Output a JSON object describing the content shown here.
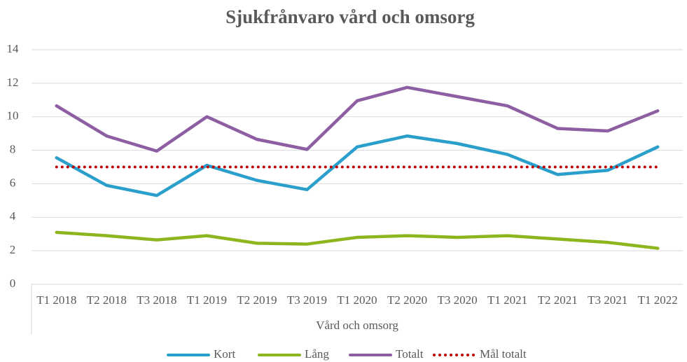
{
  "chart_data": {
    "type": "line",
    "title": "Sjukfrånvaro vård och omsorg",
    "x_label": "Vård och omsorg",
    "categories": [
      "T1 2018",
      "T2 2018",
      "T3 2018",
      "T1 2019",
      "T2 2019",
      "T3 2019",
      "T1 2020",
      "T2 2020",
      "T3 2020",
      "T1 2021",
      "T2 2021",
      "T3 2021",
      "T1 2022"
    ],
    "series": [
      {
        "name": "Kort",
        "color": "#2a9fcb",
        "dash": "solid",
        "values": [
          7.55,
          5.9,
          5.3,
          7.1,
          6.2,
          5.65,
          8.2,
          8.85,
          8.4,
          7.75,
          6.55,
          6.8,
          8.2
        ]
      },
      {
        "name": "Lång",
        "color": "#8db51e",
        "dash": "solid",
        "values": [
          3.1,
          2.9,
          2.65,
          2.9,
          2.45,
          2.4,
          2.8,
          2.9,
          2.8,
          2.9,
          2.7,
          2.5,
          2.15
        ]
      },
      {
        "name": "Totalt",
        "color": "#8e5ea2",
        "dash": "solid",
        "values": [
          10.65,
          8.85,
          7.95,
          10.0,
          8.65,
          8.05,
          10.95,
          11.75,
          11.2,
          10.65,
          9.3,
          9.15,
          10.35
        ]
      },
      {
        "name": "Mål totalt",
        "color": "#c00000",
        "dash": "dotted",
        "values": [
          7,
          7,
          7,
          7,
          7,
          7,
          7,
          7,
          7,
          7,
          7,
          7,
          7
        ]
      }
    ],
    "ylim": [
      0,
      14
    ],
    "yticks": [
      0,
      2,
      4,
      6,
      8,
      10,
      12,
      14
    ],
    "grid": true,
    "legend": "bottom"
  }
}
